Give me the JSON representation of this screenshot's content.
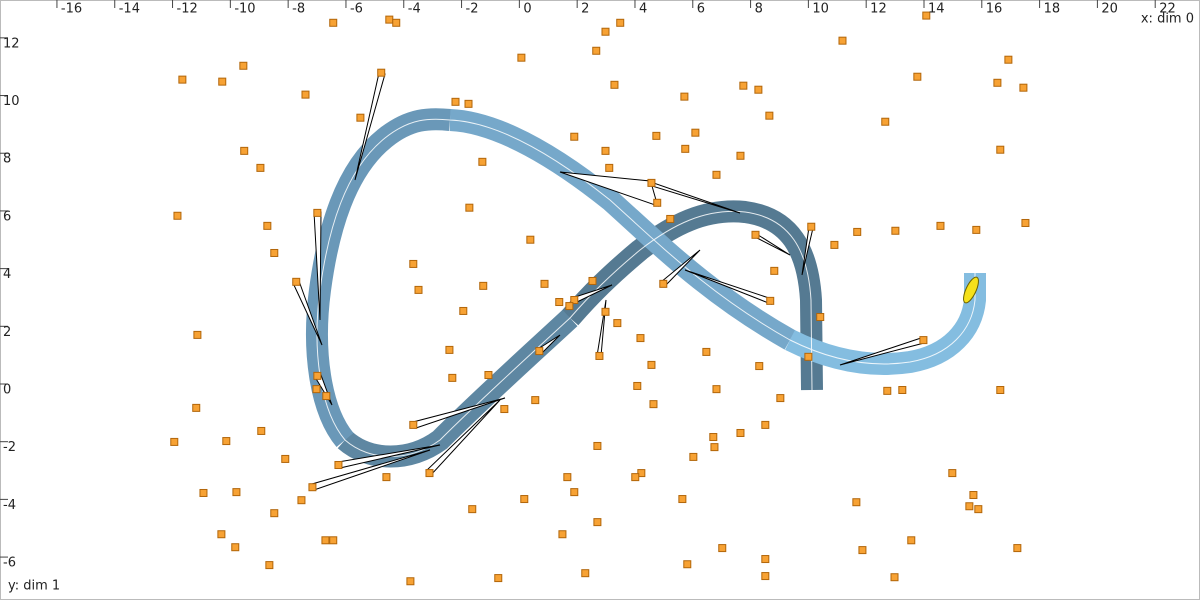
{
  "chart_data": {
    "type": "scatter",
    "xlabel": "x: dim 0",
    "ylabel": "y: dim 1",
    "xlim": [
      -17.97,
      23.55
    ],
    "ylim": [
      -7.28,
      13.52
    ],
    "xticks": [
      -16,
      -14,
      -12,
      -10,
      -8,
      -6,
      -4,
      -2,
      0,
      2,
      4,
      6,
      8,
      10,
      12,
      14,
      16,
      18,
      20,
      22
    ],
    "yticks": [
      -6,
      -4,
      -2,
      0,
      2,
      4,
      6,
      8,
      10,
      12
    ],
    "color": "#f7a234",
    "x": [
      -6.44,
      -4.5,
      -4.26,
      2.98,
      3.49,
      14.08,
      11.18,
      0.07,
      2.66,
      16.92,
      -11.66,
      -10.28,
      -9.55,
      -7.4,
      -2.21,
      -1.76,
      3.29,
      5.71,
      7.75,
      8.27,
      13.77,
      16.54,
      17.44,
      -5.5,
      1.9,
      4.74,
      6.09,
      8.65,
      12.66,
      -9.52,
      -8.96,
      -1.28,
      2.98,
      5.74,
      7.65,
      16.64,
      6.82,
      3.11,
      4.57,
      4.77,
      -11.83,
      -6.99,
      -1.73,
      5.22,
      17.51,
      -8.72,
      0.38,
      8.17,
      10.1,
      11.69,
      13.01,
      14.57,
      15.81,
      10.9,
      -8.48,
      -3.67,
      -3.49,
      -7.72,
      -1.25,
      0.87,
      2.53,
      4.98,
      8.82,
      1.38,
      1.9,
      1.73,
      8.68,
      -1.94,
      2.98,
      3.39,
      10.41,
      -11.14,
      4.19,
      -2.42,
      0.69,
      2.77,
      6.47,
      10.0,
      -2.32,
      -1.07,
      4.57,
      8.3,
      -6.99,
      4.08,
      6.82,
      -7.02,
      -6.68,
      12.73,
      13.25,
      16.64,
      9.03,
      -11.18,
      -3.67,
      -0.52,
      0.55,
      4.64,
      -8.93,
      -11.94,
      -10.14,
      6.71,
      6.75,
      7.65,
      8.51,
      2.7,
      -8.1,
      6.02,
      -6.26,
      -3.11,
      -4.6,
      4.22,
      4.01,
      1.66,
      14.98,
      -7.16,
      -10.93,
      -9.79,
      1.9,
      -7.54,
      0.17,
      5.64,
      11.66,
      15.71,
      15.57,
      15.88,
      -1.63,
      -8.48,
      2.7,
      -10.31,
      1.49,
      -6.71,
      -6.44,
      13.56,
      -9.83,
      7.02,
      11.87,
      17.23,
      -8.65,
      5.81,
      8.51,
      -3.77,
      -0.73,
      2.28,
      8.51,
      12.98,
      -4.78,
      13.98
    ],
    "values": [
      12.73,
      12.84,
      12.73,
      12.42,
      12.73,
      12.98,
      12.11,
      11.52,
      11.76,
      11.45,
      10.76,
      10.69,
      11.24,
      10.24,
      9.99,
      9.92,
      10.58,
      10.17,
      10.55,
      10.41,
      10.86,
      10.65,
      10.48,
      9.44,
      8.78,
      8.81,
      8.92,
      9.51,
      9.3,
      8.29,
      7.7,
      7.91,
      8.29,
      8.36,
      8.12,
      8.33,
      7.46,
      7.7,
      7.18,
      6.49,
      6.04,
      6.14,
      6.32,
      5.93,
      5.79,
      5.69,
      5.21,
      5.38,
      5.66,
      5.48,
      5.52,
      5.69,
      5.55,
      5.03,
      4.75,
      4.37,
      3.47,
      3.75,
      3.61,
      3.68,
      3.78,
      3.68,
      4.13,
      3.05,
      3.12,
      2.91,
      3.09,
      2.74,
      2.71,
      2.32,
      2.53,
      1.91,
      1.8,
      1.39,
      1.35,
      1.18,
      1.32,
      1.15,
      0.42,
      0.52,
      0.87,
      0.83,
      0.49,
      0.14,
      0.03,
      0.03,
      -0.21,
      -0.03,
      0,
      0,
      -0.28,
      -0.62,
      -1.21,
      -0.66,
      -0.35,
      -0.49,
      -1.42,
      -1.8,
      -1.77,
      -1.63,
      -1.98,
      -1.49,
      -1.21,
      -1.94,
      -2.39,
      -2.32,
      -2.6,
      -2.88,
      -3.02,
      -2.88,
      -3.02,
      -3.02,
      -2.88,
      -3.37,
      -3.57,
      -3.54,
      -3.54,
      -3.82,
      -3.78,
      -3.78,
      -3.89,
      -3.64,
      -4.03,
      -4.13,
      -4.13,
      -4.27,
      -4.58,
      -5.0,
      -5.0,
      -5.21,
      -5.21,
      -5.21,
      -5.45,
      -5.48,
      -5.55,
      -5.48,
      -6.07,
      -6.04,
      -5.86,
      -6.63,
      -6.52,
      -6.35,
      -6.45,
      -6.49,
      11.0,
      1.73
    ]
  }
}
